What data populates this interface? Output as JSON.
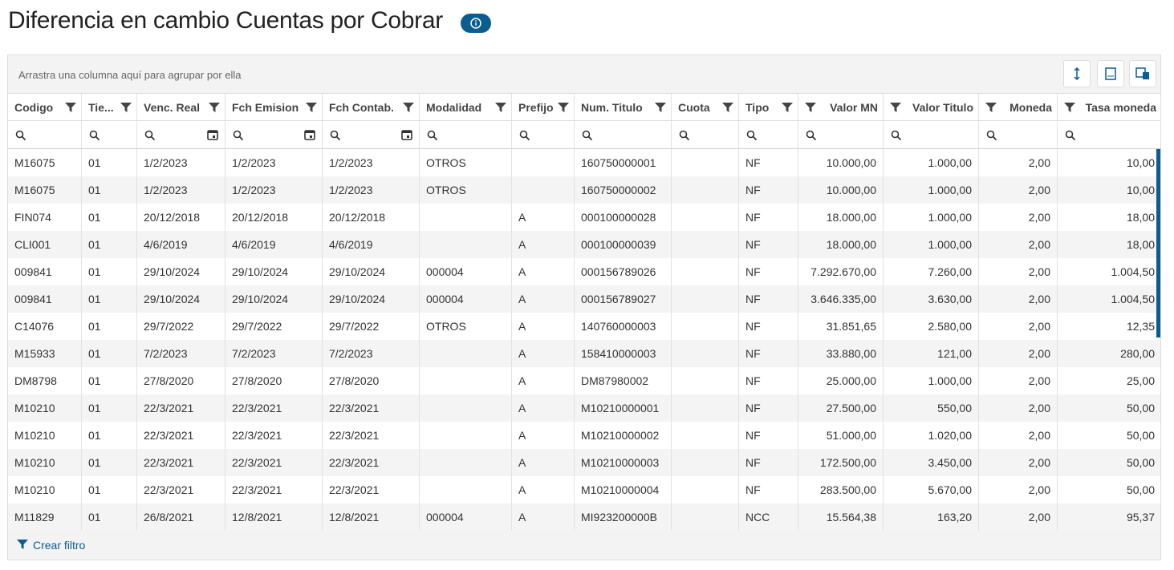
{
  "header": {
    "title": "Diferencia en cambio Cuentas por Cobrar"
  },
  "group_panel": "Arrastra una columna aquí para agrupar por ella",
  "table": {
    "columns": [
      "Codigo",
      "Tie...",
      "Venc. Real",
      "Fch Emision",
      "Fch Contab.",
      "Modalidad",
      "Prefijo",
      "Num. Titulo",
      "Cuota",
      "Tipo",
      "Valor MN",
      "Valor Titulo",
      "Moneda",
      "Tasa moneda"
    ],
    "rows": [
      [
        "M16075",
        "01",
        "1/2/2023",
        "1/2/2023",
        "1/2/2023",
        "OTROS",
        null,
        "160750000001",
        null,
        "NF",
        "10.000,00",
        "1.000,00",
        "2,00",
        "10,00"
      ],
      [
        "M16075",
        "01",
        "1/2/2023",
        "1/2/2023",
        "1/2/2023",
        "OTROS",
        null,
        "160750000002",
        null,
        "NF",
        "10.000,00",
        "1.000,00",
        "2,00",
        "10,00"
      ],
      [
        "FIN074",
        "01",
        "20/12/2018",
        "20/12/2018",
        "20/12/2018",
        null,
        "A",
        "000100000028",
        null,
        "NF",
        "18.000,00",
        "1.000,00",
        "2,00",
        "18,00"
      ],
      [
        "CLI001",
        "01",
        "4/6/2019",
        "4/6/2019",
        "4/6/2019",
        null,
        "A",
        "000100000039",
        null,
        "NF",
        "18.000,00",
        "1.000,00",
        "2,00",
        "18,00"
      ],
      [
        "009841",
        "01",
        "29/10/2024",
        "29/10/2024",
        "29/10/2024",
        "000004",
        "A",
        "000156789026",
        null,
        "NF",
        "7.292.670,00",
        "7.260,00",
        "2,00",
        "1.004,50"
      ],
      [
        "009841",
        "01",
        "29/10/2024",
        "29/10/2024",
        "29/10/2024",
        "000004",
        "A",
        "000156789027",
        null,
        "NF",
        "3.646.335,00",
        "3.630,00",
        "2,00",
        "1.004,50"
      ],
      [
        "C14076",
        "01",
        "29/7/2022",
        "29/7/2022",
        "29/7/2022",
        "OTROS",
        "A",
        "140760000003",
        null,
        "NF",
        "31.851,65",
        "2.580,00",
        "2,00",
        "12,35"
      ],
      [
        "M15933",
        "01",
        "7/2/2023",
        "7/2/2023",
        "7/2/2023",
        null,
        "A",
        "158410000003",
        null,
        "NF",
        "33.880,00",
        "121,00",
        "2,00",
        "280,00"
      ],
      [
        "DM8798",
        "01",
        "27/8/2020",
        "27/8/2020",
        "27/8/2020",
        null,
        "A",
        "DM87980002",
        null,
        "NF",
        "25.000,00",
        "1.000,00",
        "2,00",
        "25,00"
      ],
      [
        "M10210",
        "01",
        "22/3/2021",
        "22/3/2021",
        "22/3/2021",
        null,
        "A",
        "M10210000001",
        null,
        "NF",
        "27.500,00",
        "550,00",
        "2,00",
        "50,00"
      ],
      [
        "M10210",
        "01",
        "22/3/2021",
        "22/3/2021",
        "22/3/2021",
        null,
        "A",
        "M10210000002",
        null,
        "NF",
        "51.000,00",
        "1.020,00",
        "2,00",
        "50,00"
      ],
      [
        "M10210",
        "01",
        "22/3/2021",
        "22/3/2021",
        "22/3/2021",
        null,
        "A",
        "M10210000003",
        null,
        "NF",
        "172.500,00",
        "3.450,00",
        "2,00",
        "50,00"
      ],
      [
        "M10210",
        "01",
        "22/3/2021",
        "22/3/2021",
        "22/3/2021",
        null,
        "A",
        "M10210000004",
        null,
        "NF",
        "283.500,00",
        "5.670,00",
        "2,00",
        "50,00"
      ],
      [
        "M11829",
        "01",
        "26/8/2021",
        "12/8/2021",
        "12/8/2021",
        "000004",
        "A",
        "MI923200000B",
        null,
        "NCC",
        "15.564,38",
        "163,20",
        "2,00",
        "95,37"
      ]
    ]
  },
  "footer": {
    "create_filter": "Crear filtro"
  }
}
